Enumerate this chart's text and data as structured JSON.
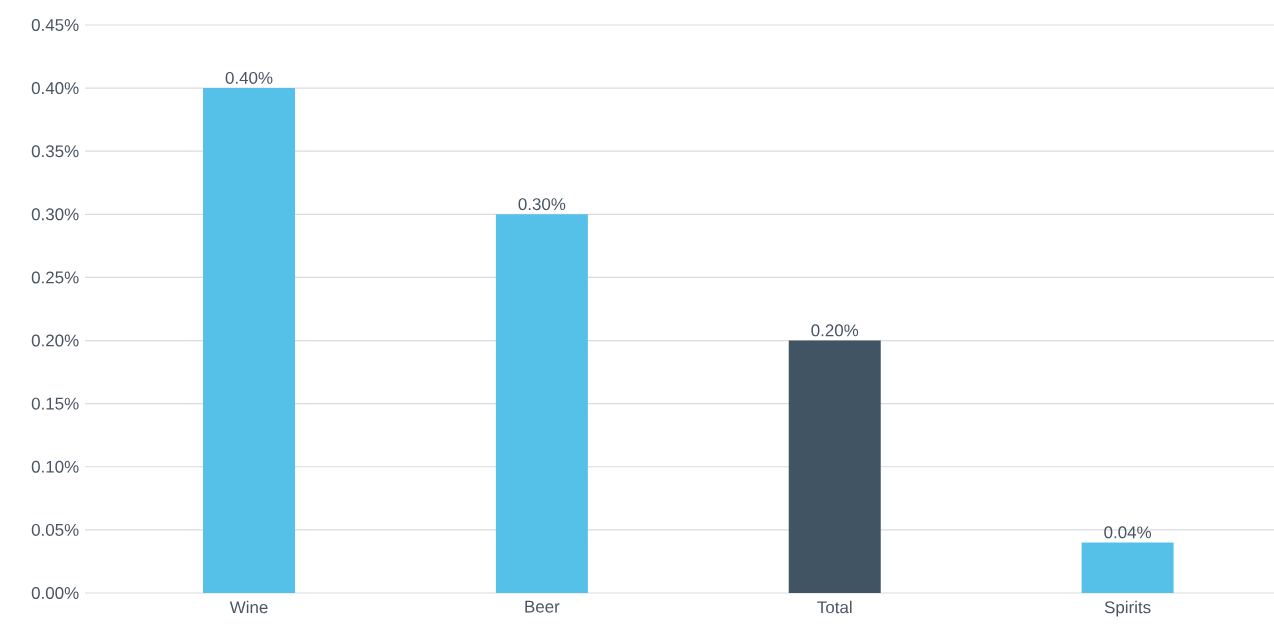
{
  "chart_data": {
    "type": "bar",
    "categories": [
      "Wine",
      "Beer",
      "Total",
      "Spirits"
    ],
    "values": [
      0.4,
      0.3,
      0.2,
      0.04
    ],
    "colors": [
      "#56c1e8",
      "#56c1e8",
      "#415464",
      "#56c1e8"
    ],
    "value_labels": [
      "0.40%",
      "0.30%",
      "0.20%",
      "0.04%"
    ],
    "ylim": [
      0,
      0.45
    ],
    "yticks": [
      {
        "value": 0,
        "label": "0.00%"
      },
      {
        "value": 0.05,
        "label": "0.05%"
      },
      {
        "value": 0.1,
        "label": "0.10%"
      },
      {
        "value": 0.15,
        "label": "0.15%"
      },
      {
        "value": 0.2,
        "label": "0.20%"
      },
      {
        "value": 0.25,
        "label": "0.25%"
      },
      {
        "value": 0.3,
        "label": "0.30%"
      },
      {
        "value": 0.35,
        "label": "0.35%"
      },
      {
        "value": 0.4,
        "label": "0.40%"
      },
      {
        "value": 0.45,
        "label": "0.45%"
      }
    ],
    "grid": "y"
  }
}
